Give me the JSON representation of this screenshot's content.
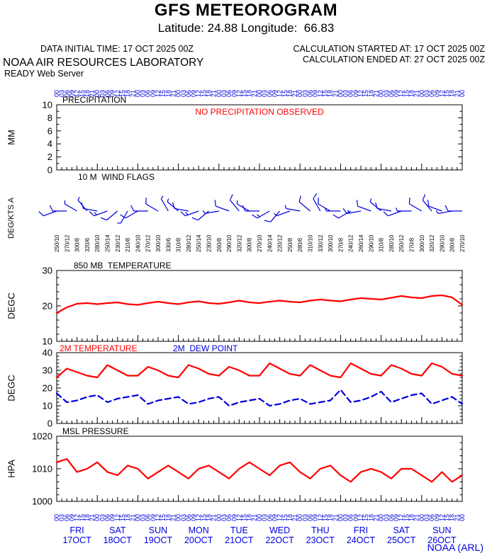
{
  "header": {
    "title": "GFS METEOROGRAM",
    "subtitle": "Latitude: 24.88 Longitude:  66.83",
    "data_initial_time": "DATA INITIAL TIME: 17 OCT 2025 00Z",
    "calc_started": "CALCULATION STARTED AT: 17 OCT 2025 00Z",
    "calc_ended": "CALCULATION ENDED AT: 27 OCT 2025 00Z",
    "lab": "NOAA AIR RESOURCES LABORATORY",
    "server": "READY Web Server"
  },
  "footer": {
    "credit": "NOAA (ARL)"
  },
  "colors": {
    "red": "#ff0000",
    "blue": "#0000dd",
    "black": "#000000"
  },
  "x_axis": {
    "total_hours": 240,
    "hour_label_pattern": [
      "00",
      "03",
      "06",
      "09",
      "12",
      "15",
      "18",
      "21"
    ],
    "end_hour_label": "00",
    "days": [
      {
        "dow": "FRI",
        "date": "17OCT"
      },
      {
        "dow": "SAT",
        "date": "18OCT"
      },
      {
        "dow": "SUN",
        "date": "19OCT"
      },
      {
        "dow": "MON",
        "date": "20OCT"
      },
      {
        "dow": "TUE",
        "date": "21OCT"
      },
      {
        "dow": "WED",
        "date": "22OCT"
      },
      {
        "dow": "THU",
        "date": "23OCT"
      },
      {
        "dow": "FRI",
        "date": "24OCT"
      },
      {
        "dow": "SAT",
        "date": "25OCT"
      },
      {
        "dow": "SUN",
        "date": "26OCT"
      }
    ]
  },
  "hours": [
    0,
    6,
    12,
    18,
    24,
    30,
    36,
    42,
    48,
    54,
    60,
    66,
    72,
    78,
    84,
    90,
    96,
    102,
    108,
    114,
    120,
    126,
    132,
    138,
    144,
    150,
    156,
    162,
    168,
    174,
    180,
    186,
    192,
    198,
    204,
    210,
    216,
    222,
    228,
    234,
    240
  ],
  "chart_data": [
    {
      "type": "bar",
      "name": "precipitation",
      "title": "PRECIPITATION",
      "ylabel": "MM",
      "ylim": [
        0,
        10
      ],
      "yticks": [
        0,
        2,
        4,
        6,
        8,
        10
      ],
      "minor_step": 1,
      "values": [],
      "annotation": {
        "text": "NO PRECIPITATION OBSERVED",
        "color": "#ff0000"
      }
    },
    {
      "type": "wind-barbs",
      "name": "10m-wind-flags",
      "title": "10 M  WIND FLAGS",
      "ylabel": "DEG/KTS A",
      "dir": [
        250,
        270,
        300,
        320,
        280,
        250,
        230,
        210,
        240,
        270,
        300,
        330,
        310,
        280,
        250,
        230,
        260,
        290,
        320,
        300,
        270,
        240,
        220,
        250,
        280,
        310,
        330,
        300,
        270,
        240,
        260,
        290,
        310,
        280,
        250,
        270,
        300,
        320,
        290,
        260,
        270
      ],
      "spd": [
        10,
        12,
        8,
        6,
        10,
        14,
        12,
        8,
        10,
        12,
        10,
        6,
        8,
        12,
        14,
        10,
        8,
        10,
        12,
        8,
        10,
        14,
        12,
        8,
        6,
        10,
        12,
        10,
        8,
        12,
        14,
        10,
        8,
        10,
        12,
        8,
        10,
        12,
        10,
        8,
        10
      ]
    },
    {
      "type": "line",
      "name": "850mb-temperature",
      "title": "850 MB  TEMPERATURE",
      "ylabel": "DEGC",
      "ylim": [
        10,
        30
      ],
      "yticks": [
        10,
        20,
        30
      ],
      "minor_step": 2,
      "series": [
        {
          "name": "850 MB TEMPERATURE",
          "color": "#ff0000",
          "style": "solid",
          "values": [
            18.0,
            19.6,
            20.6,
            20.8,
            20.5,
            20.8,
            21.0,
            20.5,
            20.3,
            20.8,
            21.2,
            20.8,
            20.5,
            21.0,
            21.3,
            20.8,
            20.6,
            21.0,
            21.5,
            21.0,
            20.8,
            21.2,
            21.5,
            21.2,
            21.0,
            21.5,
            21.8,
            21.5,
            21.3,
            21.8,
            22.2,
            22.0,
            21.8,
            22.3,
            22.8,
            22.4,
            22.2,
            22.8,
            23.0,
            22.4,
            20.3
          ]
        }
      ]
    },
    {
      "type": "line",
      "name": "2m-temperature-dewpoint",
      "ylabel": "DEGC",
      "ylim": [
        0,
        40
      ],
      "yticks": [
        0,
        10,
        20,
        30,
        40
      ],
      "minor_step": 2,
      "series": [
        {
          "name": "2M TEMPERATURE",
          "color": "#ff0000",
          "style": "solid",
          "values": [
            26,
            31,
            29,
            27,
            26,
            33,
            30,
            27,
            27,
            32,
            30,
            27,
            26,
            33,
            31,
            28,
            27,
            32,
            30,
            27,
            27,
            34,
            31,
            28,
            27,
            33,
            30,
            27,
            26,
            34,
            31,
            28,
            27,
            33,
            31,
            28,
            27,
            34,
            32,
            28,
            27
          ]
        },
        {
          "name": "2M  DEW POINT",
          "color": "#0000dd",
          "style": "dashed",
          "values": [
            17,
            12,
            13,
            15,
            16,
            12,
            14,
            15,
            16,
            11,
            13,
            14,
            15,
            11,
            12,
            14,
            15,
            10,
            12,
            13,
            14,
            10,
            11,
            13,
            14,
            11,
            12,
            13,
            19,
            12,
            13,
            15,
            18,
            12,
            14,
            16,
            17,
            11,
            13,
            15,
            11
          ]
        }
      ]
    },
    {
      "type": "line",
      "name": "msl-pressure",
      "title": "MSL PRESSURE",
      "ylabel": "HPA",
      "ylim": [
        1000,
        1020
      ],
      "yticks": [
        1000,
        1010,
        1020
      ],
      "minor_step": 2,
      "series": [
        {
          "name": "MSL PRESSURE",
          "color": "#ff0000",
          "style": "solid",
          "values": [
            1012,
            1013,
            1009,
            1010,
            1012,
            1009,
            1008,
            1011,
            1010,
            1007,
            1009,
            1011,
            1009,
            1007,
            1010,
            1011,
            1009,
            1007,
            1010,
            1012,
            1010,
            1008,
            1011,
            1012,
            1009,
            1007,
            1010,
            1011,
            1008,
            1006,
            1009,
            1010,
            1009,
            1007,
            1010,
            1010,
            1008,
            1006,
            1009,
            1006,
            1008
          ]
        }
      ]
    }
  ]
}
